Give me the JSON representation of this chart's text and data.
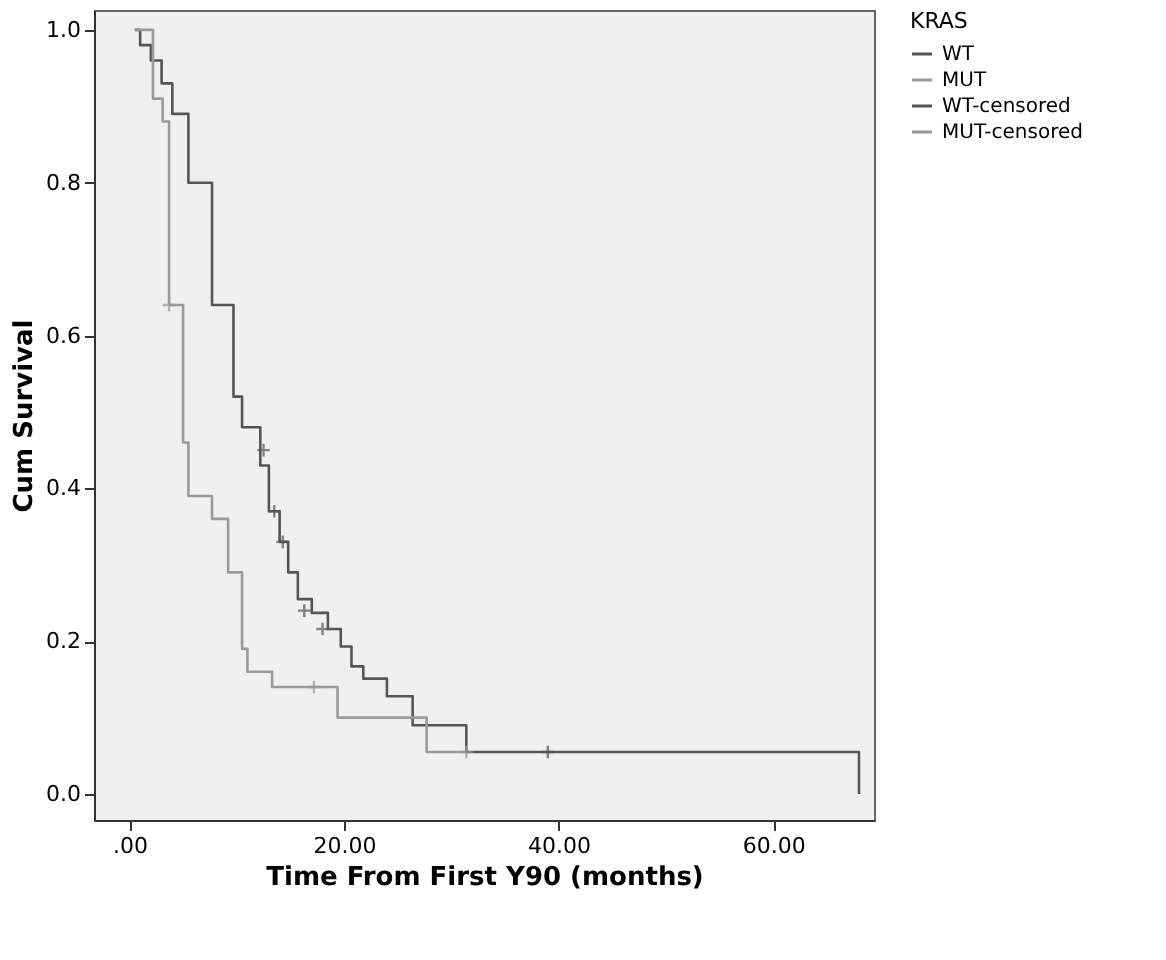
{
  "chart_data": {
    "type": "step",
    "xlabel": "Time From First Y90 (months)",
    "ylabel": "Cum Survival",
    "legend_title": "KRAS",
    "legend": "top right",
    "grid": false,
    "xlim": [
      -3.3,
      69.4
    ],
    "ylim": [
      -0.034,
      1.026
    ],
    "xticks": [
      {
        "value": 0,
        "label": ".00"
      },
      {
        "value": 20,
        "label": "20.00"
      },
      {
        "value": 40,
        "label": "40.00"
      },
      {
        "value": 60,
        "label": "60.00"
      }
    ],
    "yticks": [
      {
        "value": 0,
        "label": "0.0"
      },
      {
        "value": 0.2,
        "label": "0.2"
      },
      {
        "value": 0.4,
        "label": "0.4"
      },
      {
        "value": 0.6,
        "label": "0.6"
      },
      {
        "value": 0.8,
        "label": "0.8"
      },
      {
        "value": 1.0,
        "label": "1.0"
      }
    ],
    "series": [
      {
        "name": "WT",
        "color": "#555555",
        "x": [
          0.5,
          1,
          2,
          3,
          4,
          5.5,
          7.7,
          9.7,
          10.5,
          12.2,
          13,
          14,
          14.8,
          15.7,
          17,
          18.5,
          19.7,
          20.7,
          21.8,
          24,
          26.4,
          31.4,
          68
        ],
        "values": [
          1.0,
          0.98,
          0.96,
          0.93,
          0.89,
          0.8,
          0.64,
          0.52,
          0.48,
          0.43,
          0.37,
          0.33,
          0.29,
          0.255,
          0.237,
          0.216,
          0.193,
          0.167,
          0.151,
          0.128,
          0.09,
          0.055,
          0.0
        ]
      },
      {
        "name": "MUT",
        "color": "#9a9a9a",
        "x": [
          0.5,
          2.2,
          3.1,
          3.7,
          5,
          5.5,
          7.7,
          9.2,
          10.5,
          11,
          13.3,
          19.4,
          27.7,
          31.4
        ],
        "values": [
          1.0,
          0.91,
          0.88,
          0.64,
          0.46,
          0.39,
          0.36,
          0.29,
          0.19,
          0.16,
          0.14,
          0.1,
          0.055,
          0.055
        ]
      },
      {
        "name": "WT-censored",
        "type": "scatter",
        "marker": "cross",
        "color": "#555555",
        "x": [
          12.5,
          13.5,
          14.3,
          16.3,
          18,
          39
        ],
        "values": [
          0.45,
          0.37,
          0.33,
          0.24,
          0.216,
          0.055
        ]
      },
      {
        "name": "MUT-censored",
        "type": "scatter",
        "marker": "cross",
        "color": "#9a9a9a",
        "x": [
          3.7,
          17.2,
          31.4
        ],
        "values": [
          0.64,
          0.14,
          0.055
        ]
      }
    ]
  }
}
